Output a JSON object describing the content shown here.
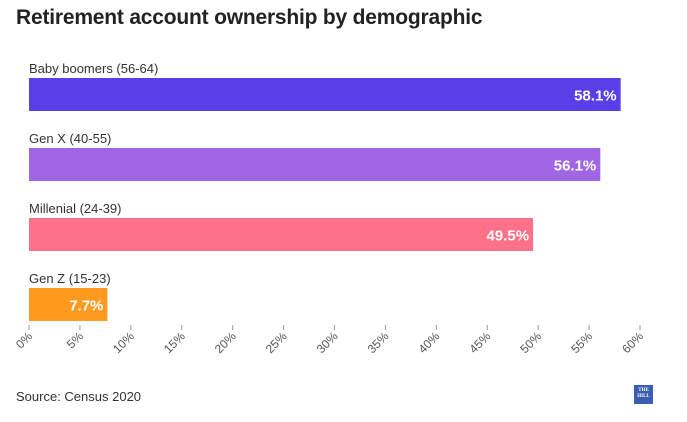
{
  "chart_data": {
    "type": "bar",
    "orientation": "horizontal",
    "title": "Retirement account ownership by demographic",
    "categories": [
      "Baby boomers (56-64)",
      "Gen X (40-55)",
      "Millenial (24-39)",
      "Gen Z (15-23)"
    ],
    "values": [
      58.1,
      56.1,
      49.5,
      7.7
    ],
    "value_labels": [
      "58.1%",
      "56.1%",
      "49.5%",
      "7.7%"
    ],
    "colors": [
      "#5a3ee8",
      "#a066e6",
      "#ff7089",
      "#ff9a1f"
    ],
    "xlim": [
      0,
      60
    ],
    "ticks": [
      0,
      5,
      10,
      15,
      20,
      25,
      30,
      35,
      40,
      45,
      50,
      55,
      60
    ],
    "tick_labels": [
      "0%",
      "5%",
      "10%",
      "15%",
      "20%",
      "25%",
      "30%",
      "35%",
      "40%",
      "45%",
      "50%",
      "55%",
      "60%"
    ],
    "grid": false
  },
  "footer": {
    "source": "Source: Census 2020",
    "logo_text": "THE HILL"
  }
}
